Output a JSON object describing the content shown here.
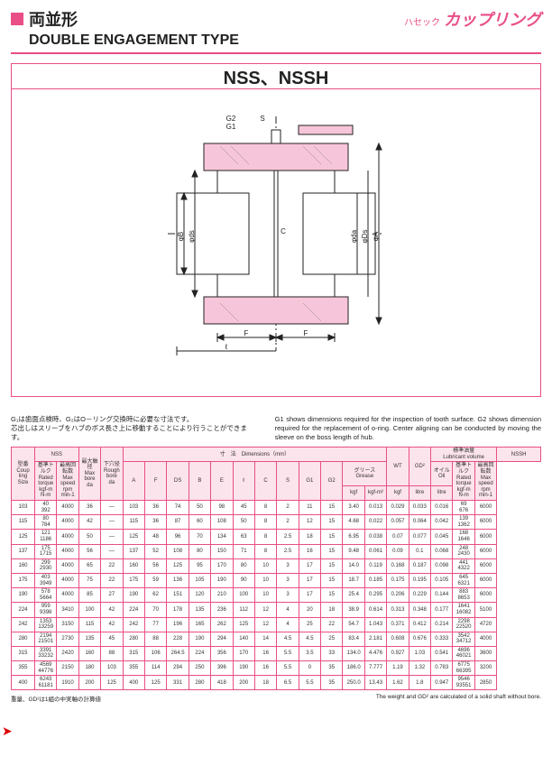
{
  "header": {
    "jp_title": "両並形",
    "brand_sm": "ハセック",
    "brand": "カップリング",
    "en_title": "DOUBLE ENGAGEMENT TYPE"
  },
  "box": {
    "title": "NSS、NSSH"
  },
  "diagram": {
    "labels": {
      "g2g1": "G2\nG1",
      "s": "S",
      "phiB": "φB",
      "phids": "φds",
      "c": "C",
      "phida": "φda",
      "phiDs": "φDs",
      "phiA": "φA",
      "F": "F",
      "l": "ℓ"
    },
    "colors": {
      "stroke": "#222",
      "pink": "#f7c5d9",
      "fill": "#fff"
    }
  },
  "notes": {
    "left": "G₁は歯面点検時、G₂はO－リング交換時に必要な寸法です。\n芯出しはスリーブをハブのボス長さ上に移動することにより行うことができます。",
    "right": "G1 shows dimensions required for the inspection of tooth surface. G2 shows dimension required for the replacement of o-ring. Center aligning can be conducted by moving the sleeve on the boss length of hub."
  },
  "table": {
    "grouphead": {
      "type": "型番\nCoup\nling\nSize",
      "nss": "NSS",
      "dims": "寸　法　Dimensions（mm）",
      "wt": "WT",
      "gd2": "GD²",
      "lub": "標準油量\nLubricant volume",
      "nssh": "NSSH"
    },
    "subhead": {
      "torque": "基準トルク\nRated\ntorque\nkgf-m\nN-m",
      "speed": "最高回転数\nMax\nspeed\nrpm\nmin-1",
      "maxbore": "最大軸径\nMax\nbore\nda",
      "roughbore": "下穴径\nRough\nbore\nda",
      "A": "A",
      "F": "F",
      "DS": "DS",
      "B": "B",
      "E": "E",
      "l": "ℓ",
      "C": "C",
      "S": "S",
      "G1": "G1",
      "G2": "G2",
      "wt_u": "kgf",
      "gd2_u": "kgf-m²",
      "grease": "グリース\nGrease",
      "grease_kgf": "kgf",
      "grease_l": "litre",
      "oil": "オイル\nOil",
      "oil_l": "litre",
      "nssh_t": "基準トルク\nRated\ntorque\nkgf-m\nN-m",
      "nssh_s": "最高回転数\nMax\nspeed\nrpm\nmin-1"
    },
    "rows": [
      [
        "103",
        "40\n392",
        "4000",
        "36",
        "—",
        "103",
        "36",
        "74",
        "50",
        "98",
        "45",
        "8",
        "2",
        "11",
        "15",
        "3.40",
        "0.013",
        "0.029",
        "0.033",
        "0.016",
        "69\n676",
        "6000"
      ],
      [
        "115",
        "80\n784",
        "4000",
        "42",
        "—",
        "115",
        "36",
        "87",
        "60",
        "108",
        "50",
        "8",
        "2",
        "12",
        "15",
        "4.68",
        "0.022",
        "0.057",
        "0.064",
        "0.042",
        "139\n1362",
        "6000"
      ],
      [
        "125",
        "121\n1186",
        "4000",
        "50",
        "—",
        "125",
        "48",
        "96",
        "70",
        "134",
        "63",
        "8",
        "2.5",
        "18",
        "15",
        "6.95",
        "0.038",
        "0.07",
        "0.077",
        "0.045",
        "168\n1646",
        "6000"
      ],
      [
        "137",
        "175\n1715",
        "4000",
        "56",
        "—",
        "137",
        "52",
        "108",
        "80",
        "150",
        "71",
        "8",
        "2.5",
        "16",
        "15",
        "9.48",
        "0.061",
        "0.09",
        "0.1",
        "0.068",
        "248\n2430",
        "6000"
      ],
      [
        "160",
        "299\n2930",
        "4000",
        "65",
        "22",
        "160",
        "56",
        "125",
        "95",
        "170",
        "80",
        "10",
        "3",
        "17",
        "15",
        "14.0",
        "0.119",
        "0.168",
        "0.187",
        "0.098",
        "441\n4322",
        "6000"
      ],
      [
        "175",
        "403\n3949",
        "4000",
        "75",
        "22",
        "175",
        "59",
        "136",
        "105",
        "190",
        "90",
        "10",
        "3",
        "17",
        "15",
        "18.7",
        "0.185",
        "0.175",
        "0.195",
        "0.105",
        "645\n6321",
        "6000"
      ],
      [
        "190",
        "578\n5664",
        "4000",
        "85",
        "27",
        "190",
        "62",
        "151",
        "120",
        "210",
        "100",
        "10",
        "3",
        "17",
        "15",
        "25.4",
        "0.295",
        "0.206",
        "0.229",
        "0.144",
        "883\n8653",
        "6000"
      ],
      [
        "224",
        "959\n9398",
        "3410",
        "100",
        "42",
        "224",
        "70",
        "178",
        "135",
        "236",
        "112",
        "12",
        "4",
        "20",
        "18",
        "38.9",
        "0.614",
        "0.313",
        "0.348",
        "0.177",
        "1641\n16082",
        "5100"
      ],
      [
        "242",
        "1353\n13259",
        "3150",
        "115",
        "42",
        "242",
        "77",
        "196",
        "165",
        "262",
        "125",
        "12",
        "4",
        "25",
        "22",
        "54.7",
        "1.043",
        "0.371",
        "0.412",
        "0.214",
        "2298\n22520",
        "4720"
      ],
      [
        "280",
        "2194\n21501",
        "2730",
        "135",
        "45",
        "280",
        "88",
        "228",
        "190",
        "294",
        "140",
        "14",
        "4.5",
        "4.5",
        "25",
        "83.4",
        "2.181",
        "0.608",
        "0.676",
        "0.333",
        "3542\n34712",
        "4000"
      ],
      [
        "315",
        "3391\n33232",
        "2420",
        "160",
        "88",
        "315",
        "106",
        "264.5",
        "224",
        "356",
        "170",
        "16",
        "5.5",
        "3.5",
        "33",
        "134.0",
        "4.476",
        "0.927",
        "1.03",
        "0.541",
        "4696\n46021",
        "3600"
      ],
      [
        "355",
        "4569\n44776",
        "2150",
        "180",
        "103",
        "355",
        "114",
        "294",
        "250",
        "396",
        "190",
        "16",
        "5.5",
        "0",
        "35",
        "186.0",
        "7.777",
        "1.19",
        "1.32",
        "0.783",
        "6775\n66395",
        "3200"
      ],
      [
        "400",
        "6243\n61181",
        "1910",
        "200",
        "125",
        "400",
        "125",
        "331",
        "280",
        "418",
        "200",
        "18",
        "6.5",
        "5.5",
        "35",
        "250.0",
        "13.43",
        "1.62",
        "1.8",
        "0.947",
        "9546\n93551",
        "2850"
      ]
    ]
  },
  "footer": {
    "left": "重量、GD²は1組の中実軸の計算値",
    "right": "The weight and GD² are calculated of a solid shaft without bore."
  }
}
